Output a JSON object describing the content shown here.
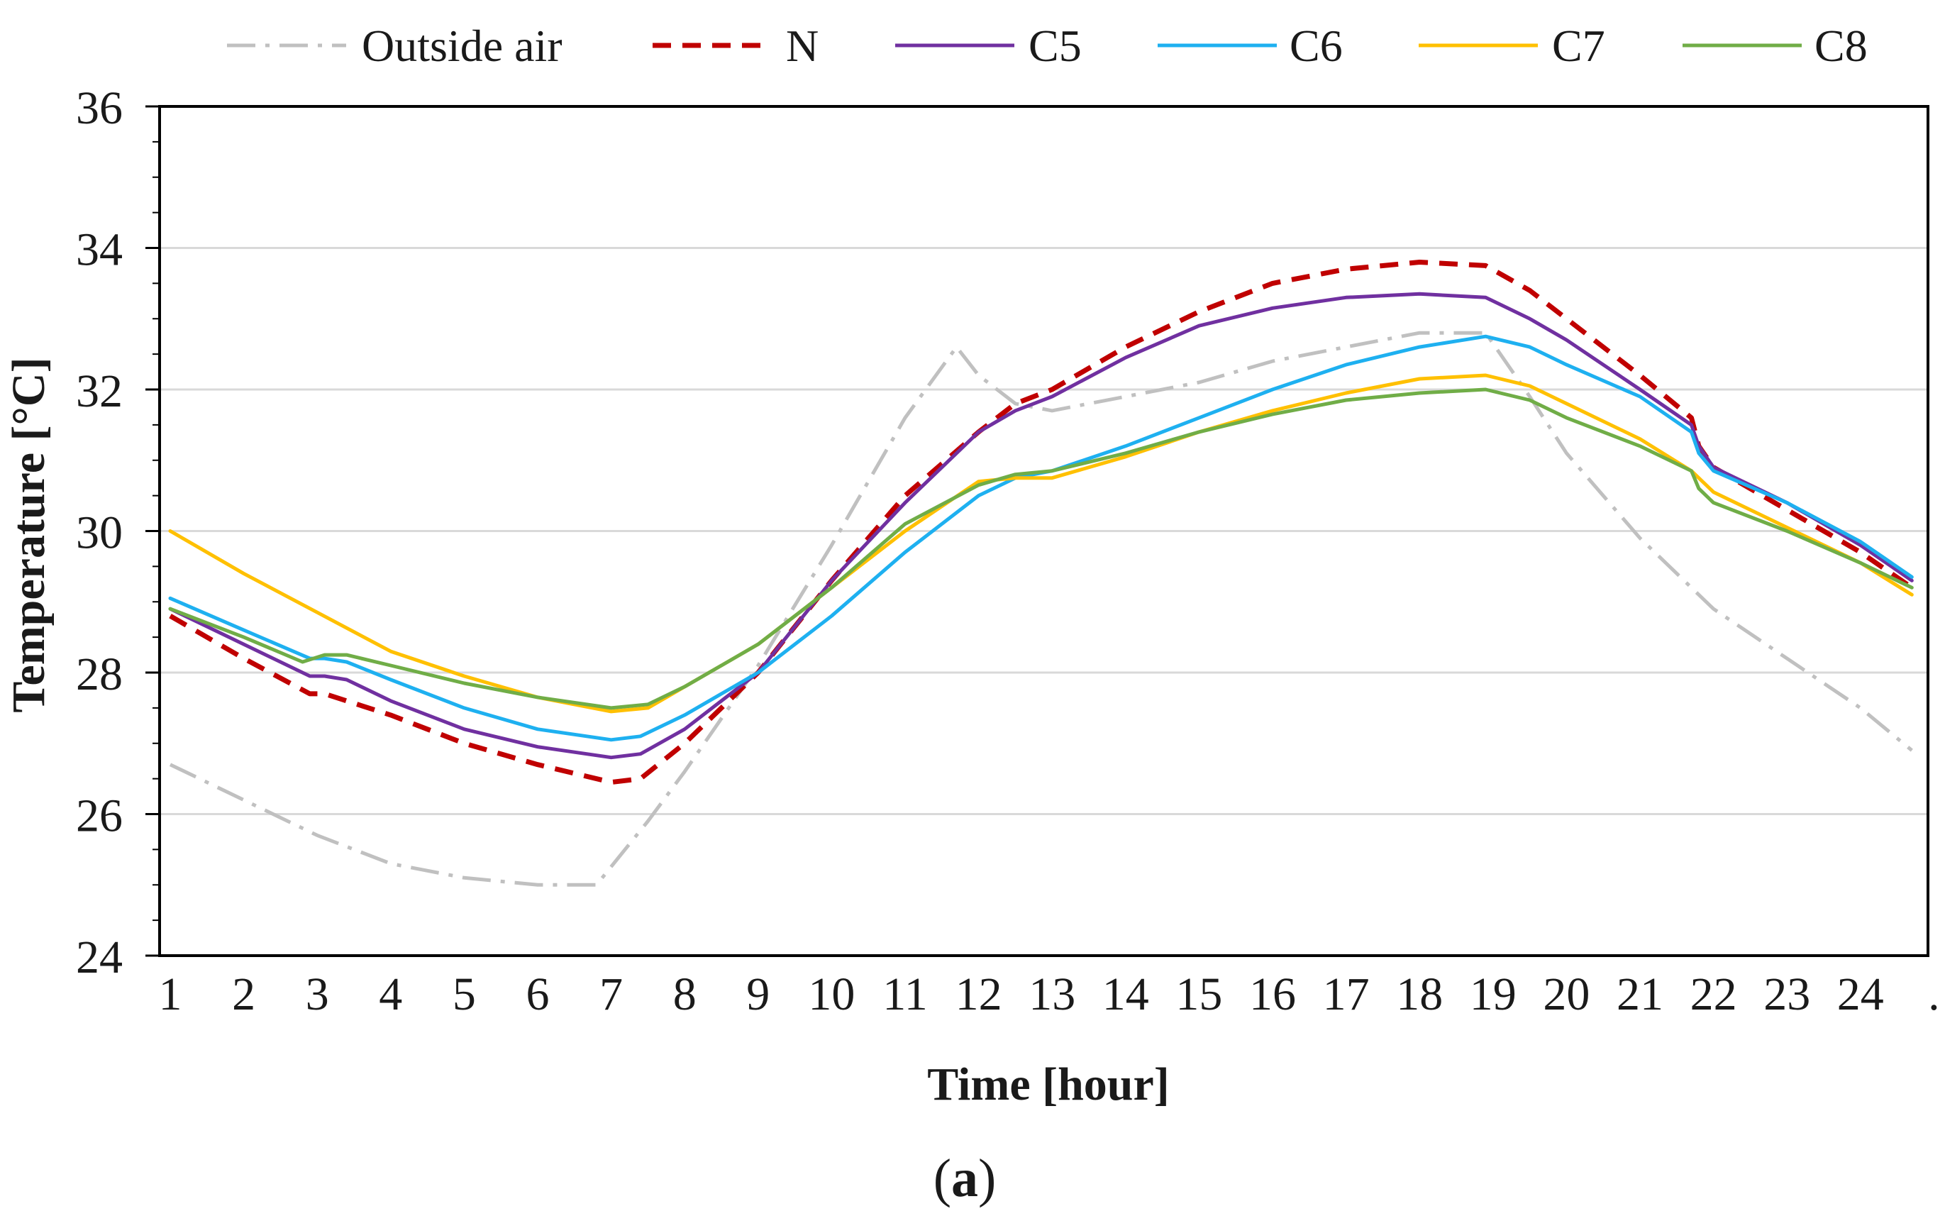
{
  "chart_data": {
    "type": "line",
    "title": "",
    "xlabel": "Time [hour]",
    "ylabel": "Temperature [°C]",
    "caption": {
      "open": "(",
      "letter": "a",
      "close": ")"
    },
    "xlim": [
      1,
      24.7
    ],
    "ylim": [
      24,
      36
    ],
    "x_ticks": [
      "1",
      "2",
      "3",
      "4",
      "5",
      "6",
      "7",
      "8",
      "9",
      "10",
      "11",
      "12",
      "13",
      "14",
      "15",
      "16",
      "17",
      "18",
      "19",
      "20",
      "21",
      "22",
      "23",
      "24",
      "."
    ],
    "y_ticks": [
      "24",
      "26",
      "28",
      "30",
      "32",
      "34",
      "36"
    ],
    "grid": true,
    "legend_position": "top",
    "series": [
      {
        "name": "Outside air",
        "color": "#c0c0c0",
        "style": "dash-dot",
        "x": [
          1,
          2,
          3,
          4,
          5,
          6,
          6.8,
          7.5,
          8,
          9,
          10,
          11,
          11.7,
          12,
          12.5,
          13,
          14,
          15,
          16,
          17,
          18,
          18.9,
          19.5,
          20,
          21,
          22,
          23,
          24,
          24.7
        ],
        "y": [
          26.7,
          26.2,
          25.7,
          25.3,
          25.1,
          25.0,
          25.0,
          25.9,
          26.6,
          28.1,
          29.8,
          31.6,
          32.6,
          32.2,
          31.8,
          31.7,
          31.9,
          32.1,
          32.4,
          32.6,
          32.8,
          32.8,
          31.9,
          31.1,
          29.9,
          28.9,
          28.2,
          27.5,
          26.9
        ]
      },
      {
        "name": "N",
        "color": "#c00000",
        "style": "dashed",
        "x": [
          1,
          2,
          2.9,
          3.1,
          3.4,
          4,
          5,
          6,
          7,
          7.4,
          8,
          9,
          10,
          11,
          12,
          12.5,
          13,
          14,
          15,
          16,
          17,
          18,
          18.9,
          19.5,
          20,
          21,
          21.7,
          21.8,
          22,
          23,
          24,
          24.7
        ],
        "y": [
          28.8,
          28.2,
          27.7,
          27.7,
          27.6,
          27.4,
          27.0,
          26.7,
          26.45,
          26.5,
          27.0,
          28.0,
          29.3,
          30.5,
          31.4,
          31.8,
          32.0,
          32.6,
          33.1,
          33.5,
          33.7,
          33.8,
          33.75,
          33.4,
          33.0,
          32.2,
          31.6,
          31.2,
          30.9,
          30.3,
          29.7,
          29.2
        ]
      },
      {
        "name": "C5",
        "color": "#7030a0",
        "style": "solid",
        "x": [
          1,
          2,
          2.9,
          3.1,
          3.4,
          4,
          5,
          6,
          7,
          7.4,
          8,
          9,
          10,
          11,
          12,
          12.5,
          13,
          14,
          15,
          16,
          17,
          18,
          18.9,
          19.5,
          20,
          21,
          21.7,
          21.8,
          22,
          23,
          24,
          24.7
        ],
        "y": [
          28.9,
          28.4,
          27.95,
          27.95,
          27.9,
          27.6,
          27.2,
          26.95,
          26.8,
          26.85,
          27.2,
          28.0,
          29.3,
          30.4,
          31.4,
          31.7,
          31.9,
          32.45,
          32.9,
          33.15,
          33.3,
          33.35,
          33.3,
          33.0,
          32.7,
          32.0,
          31.5,
          31.2,
          30.9,
          30.4,
          29.8,
          29.3
        ]
      },
      {
        "name": "C6",
        "color": "#1eb0f0",
        "style": "solid",
        "x": [
          1,
          2,
          2.9,
          3.1,
          3.4,
          4,
          5,
          6,
          7,
          7.4,
          8,
          9,
          10,
          11,
          12,
          12.5,
          13,
          14,
          15,
          16,
          17,
          18,
          18.9,
          19.5,
          20,
          21,
          21.7,
          21.8,
          22,
          23,
          24,
          24.7
        ],
        "y": [
          29.05,
          28.6,
          28.2,
          28.2,
          28.15,
          27.9,
          27.5,
          27.2,
          27.05,
          27.1,
          27.4,
          28.0,
          28.8,
          29.7,
          30.5,
          30.75,
          30.85,
          31.2,
          31.6,
          32.0,
          32.35,
          32.6,
          32.75,
          32.6,
          32.35,
          31.9,
          31.4,
          31.1,
          30.85,
          30.4,
          29.85,
          29.35
        ]
      },
      {
        "name": "C7",
        "color": "#ffc000",
        "style": "solid",
        "x": [
          1,
          2,
          3,
          4,
          5,
          6,
          7,
          7.5,
          8,
          9,
          10,
          11,
          12,
          12.5,
          13,
          14,
          15,
          16,
          17,
          18,
          18.9,
          19.5,
          20,
          21,
          21.7,
          22,
          23,
          24,
          24.7
        ],
        "y": [
          30.0,
          29.4,
          28.85,
          28.3,
          27.95,
          27.65,
          27.45,
          27.5,
          27.8,
          28.4,
          29.2,
          30.0,
          30.7,
          30.75,
          30.75,
          31.05,
          31.4,
          31.7,
          31.95,
          32.15,
          32.2,
          32.05,
          31.8,
          31.3,
          30.85,
          30.55,
          30.05,
          29.55,
          29.1
        ]
      },
      {
        "name": "C8",
        "color": "#70ad47",
        "style": "solid",
        "x": [
          1,
          2,
          2.8,
          3.1,
          3.4,
          4,
          5,
          6,
          7,
          7.5,
          8,
          9,
          10,
          11,
          12,
          12.5,
          13,
          14,
          15,
          16,
          17,
          18,
          18.9,
          19.5,
          20,
          21,
          21.7,
          21.8,
          22,
          23,
          24,
          24.7
        ],
        "y": [
          28.9,
          28.5,
          28.15,
          28.25,
          28.25,
          28.1,
          27.85,
          27.65,
          27.5,
          27.55,
          27.8,
          28.4,
          29.2,
          30.1,
          30.65,
          30.8,
          30.85,
          31.1,
          31.4,
          31.65,
          31.85,
          31.95,
          32.0,
          31.85,
          31.6,
          31.2,
          30.85,
          30.6,
          30.4,
          30.0,
          29.55,
          29.2
        ]
      }
    ]
  }
}
